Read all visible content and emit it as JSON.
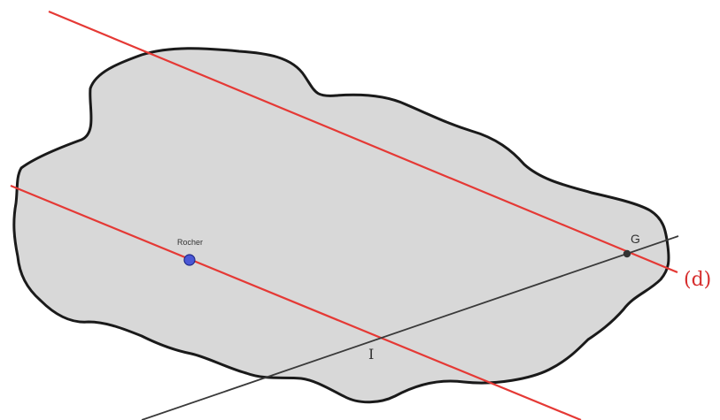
{
  "labels": {
    "rocher": "Rocher",
    "g": "G",
    "i": "I",
    "d": "(d)"
  },
  "colors": {
    "island_fill": "#d8d8d8",
    "island_stroke": "#1a1a1a",
    "red_line": "#e53935",
    "black_line": "#3a3a3a",
    "rocher_point": "#4a57d6",
    "g_point": "#333333",
    "d_label": "#d62d2d"
  }
}
